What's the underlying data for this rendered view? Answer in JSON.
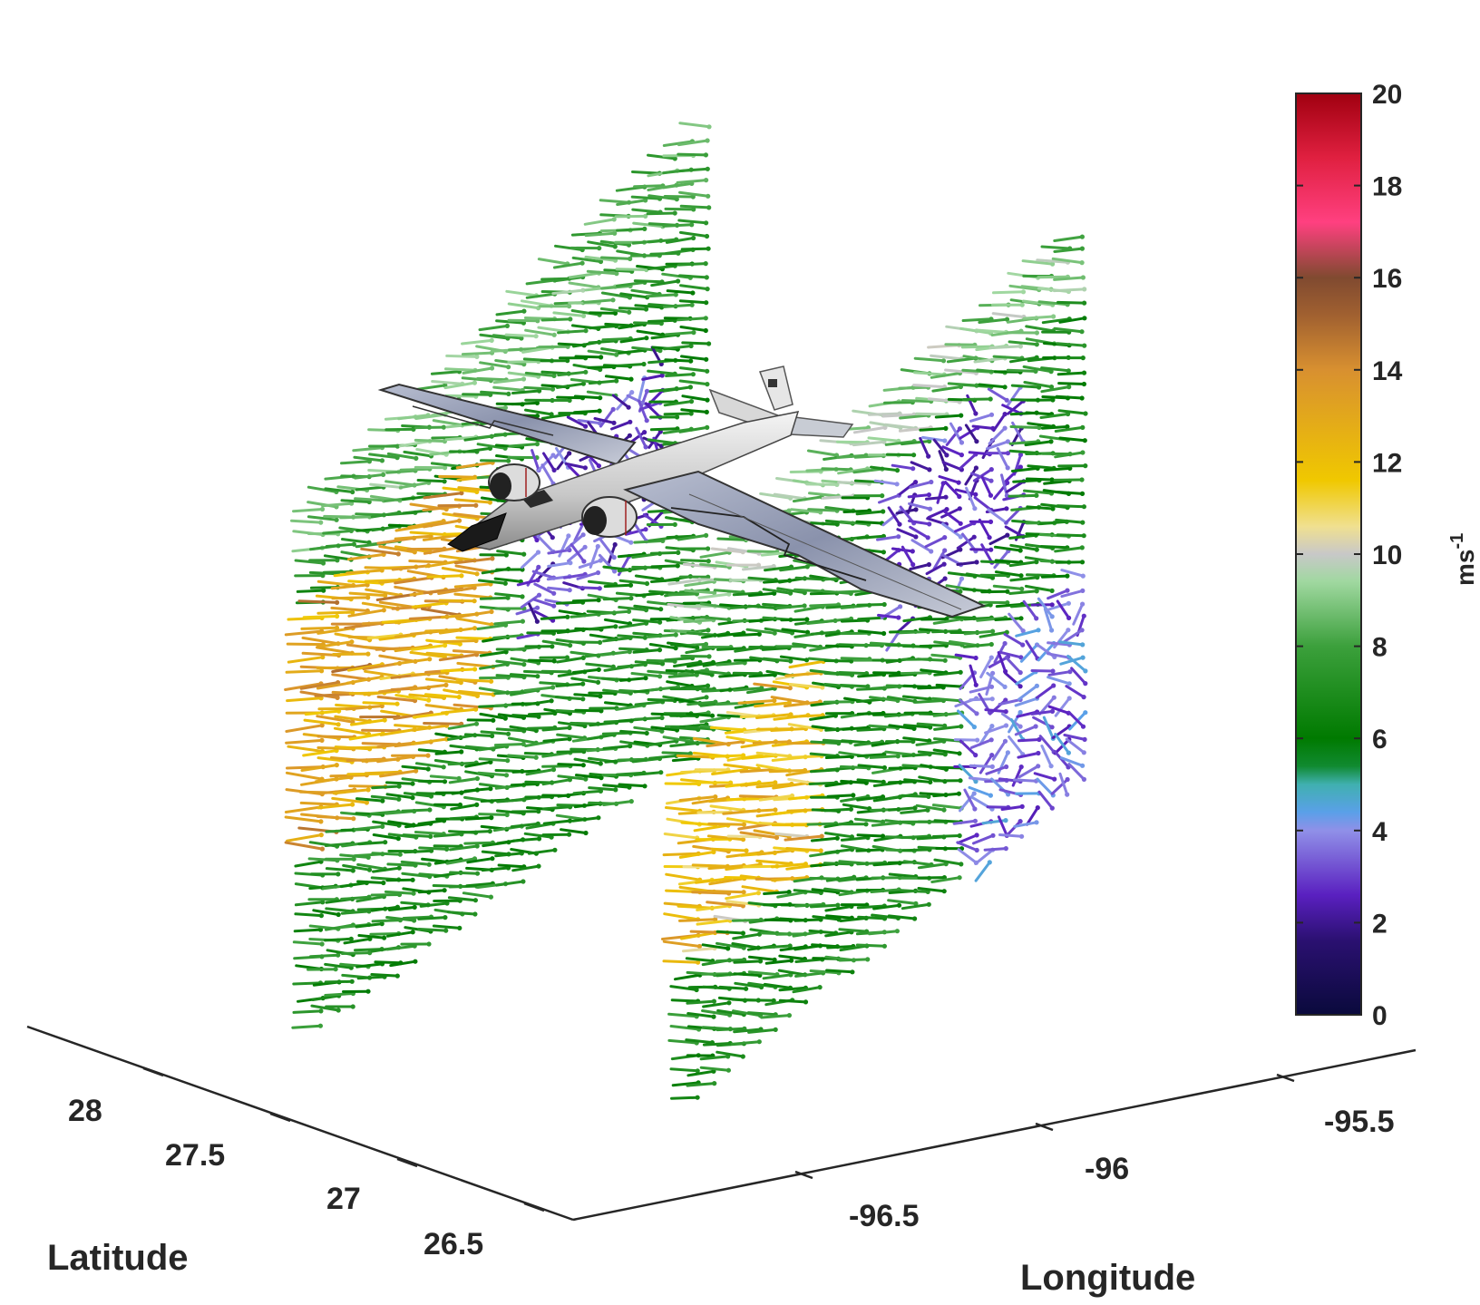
{
  "chart_data": {
    "type": "quiver3d",
    "xlabel": "Longitude",
    "ylabel": "Latitude",
    "x_ticks": [
      "-96.5",
      "-96",
      "-95.5"
    ],
    "y_ticks": [
      "28",
      "27.5",
      "27",
      "26.5"
    ],
    "colorbar": {
      "label": "ms",
      "label_superscript": "-1",
      "range": [
        0,
        20
      ],
      "ticks": [
        "0",
        "2",
        "4",
        "6",
        "8",
        "10",
        "12",
        "14",
        "16",
        "18",
        "20"
      ],
      "colormap": [
        [
          0,
          "#0a0a3c"
        ],
        [
          0.08,
          "#2a1070"
        ],
        [
          0.13,
          "#5a20c0"
        ],
        [
          0.2,
          "#9090e8"
        ],
        [
          0.22,
          "#5aa0e8"
        ],
        [
          0.25,
          "#40b0b0"
        ],
        [
          0.27,
          "#108a30"
        ],
        [
          0.3,
          "#007a00"
        ],
        [
          0.4,
          "#3ca03c"
        ],
        [
          0.47,
          "#a0d8a0"
        ],
        [
          0.5,
          "#c8c8c8"
        ],
        [
          0.53,
          "#f0e090"
        ],
        [
          0.58,
          "#f0c800"
        ],
        [
          0.7,
          "#d89030"
        ],
        [
          0.76,
          "#a06030"
        ],
        [
          0.8,
          "#804a30"
        ],
        [
          0.86,
          "#ff4080"
        ],
        [
          0.93,
          "#e02040"
        ],
        [
          1,
          "#a00010"
        ]
      ]
    },
    "curtains": [
      {
        "name": "west",
        "lat": [
          26.62,
          28.04
        ],
        "lon": -96.58,
        "speed_profile": "orange-band-mid"
      },
      {
        "name": "east",
        "lat": [
          26.62,
          28.04
        ],
        "lon": -96.02,
        "speed_profile": "green-yellow"
      }
    ],
    "aircraft": "WB-57 aircraft model"
  }
}
